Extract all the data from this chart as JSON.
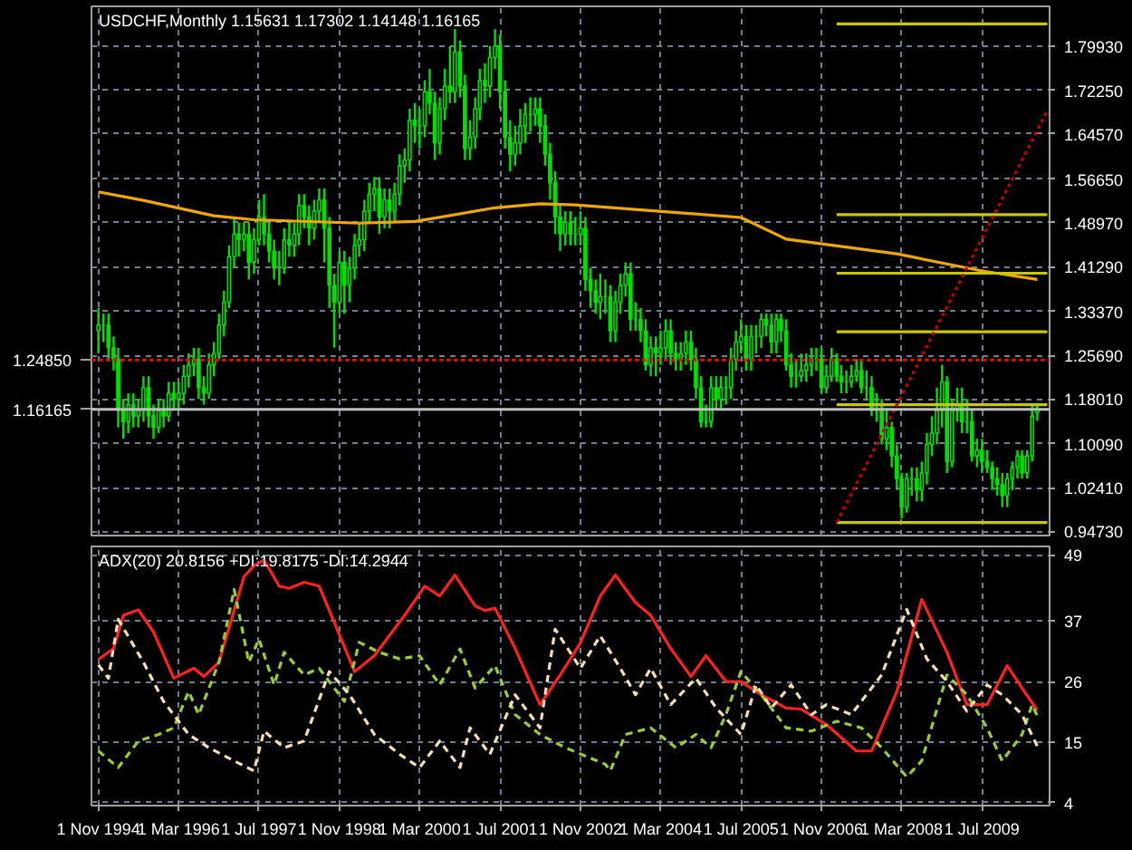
{
  "chart_data": [
    {
      "type": "candlestick",
      "title": "USDCHF,Monthly  1.15631 1.17302 1.14148 1.16165",
      "color": "#00e000",
      "x": [
        "1994-11",
        "1994-12",
        "1995-01",
        "1995-02",
        "1995-03",
        "1995-04",
        "1995-05",
        "1995-06",
        "1995-07",
        "1995-08",
        "1995-09",
        "1995-10",
        "1995-11",
        "1995-12",
        "1996-01",
        "1996-02",
        "1996-03",
        "1996-04",
        "1996-05",
        "1996-06",
        "1996-07",
        "1996-08",
        "1996-09",
        "1996-10",
        "1996-11",
        "1996-12",
        "1997-01",
        "1997-02",
        "1997-03",
        "1997-04",
        "1997-05",
        "1997-06",
        "1997-07",
        "1997-08",
        "1997-09",
        "1997-10",
        "1997-11",
        "1997-12",
        "1998-01",
        "1998-02",
        "1998-03",
        "1998-04",
        "1998-05",
        "1998-06",
        "1998-07",
        "1998-08",
        "1998-09",
        "1998-10",
        "1998-11",
        "1998-12",
        "1999-01",
        "1999-02",
        "1999-03",
        "1999-04",
        "1999-05",
        "1999-06",
        "1999-07",
        "1999-08",
        "1999-09",
        "1999-10",
        "1999-11",
        "1999-12",
        "2000-01",
        "2000-02",
        "2000-03",
        "2000-04",
        "2000-05",
        "2000-06",
        "2000-07",
        "2000-08",
        "2000-09",
        "2000-10",
        "2000-11",
        "2000-12",
        "2001-01",
        "2001-02",
        "2001-03",
        "2001-04",
        "2001-05",
        "2001-06",
        "2001-07",
        "2001-08",
        "2001-09",
        "2001-10",
        "2001-11",
        "2001-12",
        "2002-01",
        "2002-02",
        "2002-03",
        "2002-04",
        "2002-05",
        "2002-06",
        "2002-07",
        "2002-08",
        "2002-09",
        "2002-10",
        "2002-11",
        "2002-12",
        "2003-01",
        "2003-02",
        "2003-03",
        "2003-04",
        "2003-05",
        "2003-06",
        "2003-07",
        "2003-08",
        "2003-09",
        "2003-10",
        "2003-11",
        "2003-12",
        "2004-01",
        "2004-02",
        "2004-03",
        "2004-04",
        "2004-05",
        "2004-06",
        "2004-07",
        "2004-08",
        "2004-09",
        "2004-10",
        "2004-11",
        "2004-12",
        "2005-01",
        "2005-02",
        "2005-03",
        "2005-04",
        "2005-05",
        "2005-06",
        "2005-07",
        "2005-08",
        "2005-09",
        "2005-10",
        "2005-11",
        "2005-12",
        "2006-01",
        "2006-02",
        "2006-03",
        "2006-04",
        "2006-05",
        "2006-06",
        "2006-07",
        "2006-08",
        "2006-09",
        "2006-10",
        "2006-11",
        "2006-12",
        "2007-01",
        "2007-02",
        "2007-03",
        "2007-04",
        "2007-05",
        "2007-06",
        "2007-07",
        "2007-08",
        "2007-09",
        "2007-10",
        "2007-11",
        "2007-12",
        "2008-01",
        "2008-02",
        "2008-03",
        "2008-04",
        "2008-05",
        "2008-06",
        "2008-07",
        "2008-08",
        "2008-09",
        "2008-10",
        "2008-11",
        "2008-12",
        "2009-01",
        "2009-02",
        "2009-03",
        "2009-04",
        "2009-05",
        "2009-06",
        "2009-07",
        "2009-08",
        "2009-09",
        "2009-10",
        "2009-11",
        "2009-12",
        "2010-01",
        "2010-02",
        "2010-03",
        "2010-04",
        "2010-05",
        "2010-06"
      ],
      "ohlc": [
        [
          1.3,
          1.34,
          1.26,
          1.31
        ],
        [
          1.31,
          1.33,
          1.28,
          1.31
        ],
        [
          1.31,
          1.33,
          1.25,
          1.27
        ],
        [
          1.27,
          1.29,
          1.23,
          1.25
        ],
        [
          1.25,
          1.27,
          1.13,
          1.16
        ],
        [
          1.16,
          1.18,
          1.11,
          1.14
        ],
        [
          1.14,
          1.19,
          1.12,
          1.17
        ],
        [
          1.17,
          1.19,
          1.13,
          1.15
        ],
        [
          1.15,
          1.18,
          1.13,
          1.16
        ],
        [
          1.16,
          1.22,
          1.14,
          1.2
        ],
        [
          1.2,
          1.22,
          1.13,
          1.15
        ],
        [
          1.15,
          1.17,
          1.11,
          1.13
        ],
        [
          1.13,
          1.18,
          1.12,
          1.16
        ],
        [
          1.16,
          1.18,
          1.13,
          1.15
        ],
        [
          1.15,
          1.21,
          1.14,
          1.19
        ],
        [
          1.19,
          1.21,
          1.16,
          1.18
        ],
        [
          1.18,
          1.21,
          1.16,
          1.19
        ],
        [
          1.19,
          1.24,
          1.17,
          1.22
        ],
        [
          1.22,
          1.26,
          1.2,
          1.24
        ],
        [
          1.24,
          1.27,
          1.22,
          1.25
        ],
        [
          1.25,
          1.27,
          1.18,
          1.2
        ],
        [
          1.2,
          1.22,
          1.17,
          1.19
        ],
        [
          1.19,
          1.26,
          1.18,
          1.24
        ],
        [
          1.24,
          1.28,
          1.22,
          1.26
        ],
        [
          1.26,
          1.33,
          1.25,
          1.31
        ],
        [
          1.31,
          1.37,
          1.29,
          1.35
        ],
        [
          1.35,
          1.45,
          1.34,
          1.43
        ],
        [
          1.43,
          1.5,
          1.41,
          1.47
        ],
        [
          1.47,
          1.49,
          1.43,
          1.46
        ],
        [
          1.46,
          1.49,
          1.44,
          1.47
        ],
        [
          1.47,
          1.49,
          1.39,
          1.42
        ],
        [
          1.42,
          1.48,
          1.4,
          1.46
        ],
        [
          1.46,
          1.53,
          1.45,
          1.5
        ],
        [
          1.5,
          1.54,
          1.45,
          1.47
        ],
        [
          1.47,
          1.49,
          1.42,
          1.44
        ],
        [
          1.44,
          1.46,
          1.39,
          1.41
        ],
        [
          1.41,
          1.44,
          1.38,
          1.41
        ],
        [
          1.41,
          1.48,
          1.4,
          1.46
        ],
        [
          1.46,
          1.49,
          1.43,
          1.45
        ],
        [
          1.45,
          1.49,
          1.43,
          1.47
        ],
        [
          1.47,
          1.54,
          1.45,
          1.52
        ],
        [
          1.52,
          1.54,
          1.48,
          1.5
        ],
        [
          1.5,
          1.52,
          1.45,
          1.48
        ],
        [
          1.48,
          1.53,
          1.46,
          1.51
        ],
        [
          1.51,
          1.55,
          1.49,
          1.53
        ],
        [
          1.53,
          1.55,
          1.42,
          1.48
        ],
        [
          1.48,
          1.5,
          1.34,
          1.38
        ],
        [
          1.38,
          1.4,
          1.27,
          1.35
        ],
        [
          1.35,
          1.44,
          1.33,
          1.42
        ],
        [
          1.42,
          1.44,
          1.33,
          1.38
        ],
        [
          1.38,
          1.43,
          1.35,
          1.41
        ],
        [
          1.41,
          1.47,
          1.39,
          1.45
        ],
        [
          1.45,
          1.49,
          1.43,
          1.46
        ],
        [
          1.46,
          1.53,
          1.44,
          1.51
        ],
        [
          1.51,
          1.56,
          1.49,
          1.54
        ],
        [
          1.54,
          1.57,
          1.51,
          1.55
        ],
        [
          1.55,
          1.57,
          1.47,
          1.5
        ],
        [
          1.5,
          1.55,
          1.48,
          1.53
        ],
        [
          1.53,
          1.55,
          1.48,
          1.51
        ],
        [
          1.51,
          1.56,
          1.49,
          1.54
        ],
        [
          1.54,
          1.61,
          1.52,
          1.59
        ],
        [
          1.59,
          1.62,
          1.56,
          1.6
        ],
        [
          1.6,
          1.69,
          1.58,
          1.67
        ],
        [
          1.67,
          1.7,
          1.63,
          1.66
        ],
        [
          1.66,
          1.69,
          1.62,
          1.66
        ],
        [
          1.66,
          1.74,
          1.64,
          1.72
        ],
        [
          1.72,
          1.76,
          1.68,
          1.7
        ],
        [
          1.7,
          1.72,
          1.6,
          1.63
        ],
        [
          1.63,
          1.71,
          1.61,
          1.69
        ],
        [
          1.69,
          1.76,
          1.67,
          1.73
        ],
        [
          1.73,
          1.8,
          1.7,
          1.72
        ],
        [
          1.72,
          1.83,
          1.7,
          1.79
        ],
        [
          1.79,
          1.81,
          1.71,
          1.73
        ],
        [
          1.73,
          1.75,
          1.6,
          1.62
        ],
        [
          1.62,
          1.67,
          1.6,
          1.64
        ],
        [
          1.64,
          1.71,
          1.62,
          1.69
        ],
        [
          1.69,
          1.76,
          1.67,
          1.74
        ],
        [
          1.74,
          1.77,
          1.7,
          1.73
        ],
        [
          1.73,
          1.8,
          1.71,
          1.78
        ],
        [
          1.78,
          1.83,
          1.76,
          1.8
        ],
        [
          1.8,
          1.82,
          1.69,
          1.72
        ],
        [
          1.72,
          1.74,
          1.62,
          1.64
        ],
        [
          1.64,
          1.67,
          1.58,
          1.61
        ],
        [
          1.61,
          1.66,
          1.59,
          1.63
        ],
        [
          1.63,
          1.69,
          1.61,
          1.66
        ],
        [
          1.66,
          1.7,
          1.63,
          1.68
        ],
        [
          1.68,
          1.71,
          1.65,
          1.68
        ],
        [
          1.68,
          1.71,
          1.66,
          1.69
        ],
        [
          1.69,
          1.71,
          1.63,
          1.66
        ],
        [
          1.66,
          1.68,
          1.59,
          1.61
        ],
        [
          1.61,
          1.63,
          1.53,
          1.56
        ],
        [
          1.56,
          1.58,
          1.47,
          1.5
        ],
        [
          1.5,
          1.52,
          1.44,
          1.47
        ],
        [
          1.47,
          1.51,
          1.45,
          1.49
        ],
        [
          1.49,
          1.51,
          1.45,
          1.47
        ],
        [
          1.47,
          1.5,
          1.45,
          1.47
        ],
        [
          1.47,
          1.51,
          1.45,
          1.48
        ],
        [
          1.48,
          1.5,
          1.37,
          1.39
        ],
        [
          1.39,
          1.41,
          1.34,
          1.37
        ],
        [
          1.37,
          1.39,
          1.33,
          1.35
        ],
        [
          1.35,
          1.4,
          1.32,
          1.36
        ],
        [
          1.36,
          1.39,
          1.33,
          1.36
        ],
        [
          1.36,
          1.38,
          1.28,
          1.3
        ],
        [
          1.3,
          1.37,
          1.28,
          1.35
        ],
        [
          1.35,
          1.4,
          1.33,
          1.38
        ],
        [
          1.38,
          1.42,
          1.36,
          1.4
        ],
        [
          1.4,
          1.42,
          1.3,
          1.32
        ],
        [
          1.32,
          1.35,
          1.3,
          1.32
        ],
        [
          1.32,
          1.34,
          1.28,
          1.3
        ],
        [
          1.3,
          1.32,
          1.23,
          1.24
        ],
        [
          1.24,
          1.29,
          1.22,
          1.27
        ],
        [
          1.27,
          1.29,
          1.22,
          1.26
        ],
        [
          1.26,
          1.3,
          1.24,
          1.27
        ],
        [
          1.27,
          1.32,
          1.25,
          1.3
        ],
        [
          1.3,
          1.32,
          1.24,
          1.26
        ],
        [
          1.26,
          1.28,
          1.23,
          1.25
        ],
        [
          1.25,
          1.28,
          1.23,
          1.26
        ],
        [
          1.26,
          1.3,
          1.24,
          1.28
        ],
        [
          1.28,
          1.3,
          1.23,
          1.25
        ],
        [
          1.25,
          1.27,
          1.18,
          1.2
        ],
        [
          1.2,
          1.22,
          1.13,
          1.14
        ],
        [
          1.14,
          1.17,
          1.13,
          1.14
        ],
        [
          1.14,
          1.22,
          1.13,
          1.2
        ],
        [
          1.2,
          1.22,
          1.16,
          1.18
        ],
        [
          1.18,
          1.22,
          1.16,
          1.2
        ],
        [
          1.2,
          1.22,
          1.17,
          1.2
        ],
        [
          1.2,
          1.27,
          1.18,
          1.25
        ],
        [
          1.25,
          1.3,
          1.23,
          1.28
        ],
        [
          1.28,
          1.32,
          1.26,
          1.29
        ],
        [
          1.29,
          1.31,
          1.23,
          1.25
        ],
        [
          1.25,
          1.31,
          1.23,
          1.29
        ],
        [
          1.29,
          1.31,
          1.26,
          1.29
        ],
        [
          1.29,
          1.33,
          1.27,
          1.32
        ],
        [
          1.32,
          1.33,
          1.29,
          1.31
        ],
        [
          1.31,
          1.33,
          1.26,
          1.28
        ],
        [
          1.28,
          1.33,
          1.26,
          1.32
        ],
        [
          1.32,
          1.33,
          1.28,
          1.3
        ],
        [
          1.3,
          1.32,
          1.23,
          1.24
        ],
        [
          1.24,
          1.26,
          1.2,
          1.22
        ],
        [
          1.22,
          1.25,
          1.2,
          1.22
        ],
        [
          1.22,
          1.26,
          1.21,
          1.23
        ],
        [
          1.23,
          1.26,
          1.21,
          1.24
        ],
        [
          1.24,
          1.27,
          1.22,
          1.25
        ],
        [
          1.25,
          1.27,
          1.23,
          1.25
        ],
        [
          1.25,
          1.27,
          1.19,
          1.2
        ],
        [
          1.2,
          1.24,
          1.19,
          1.22
        ],
        [
          1.22,
          1.27,
          1.21,
          1.25
        ],
        [
          1.25,
          1.26,
          1.21,
          1.22
        ],
        [
          1.22,
          1.24,
          1.19,
          1.21
        ],
        [
          1.21,
          1.23,
          1.19,
          1.21
        ],
        [
          1.21,
          1.24,
          1.2,
          1.22
        ],
        [
          1.22,
          1.25,
          1.21,
          1.23
        ],
        [
          1.23,
          1.25,
          1.19,
          1.2
        ],
        [
          1.2,
          1.23,
          1.18,
          1.2
        ],
        [
          1.2,
          1.22,
          1.15,
          1.16
        ],
        [
          1.16,
          1.19,
          1.14,
          1.16
        ],
        [
          1.16,
          1.18,
          1.1,
          1.11
        ],
        [
          1.11,
          1.16,
          1.09,
          1.13
        ],
        [
          1.13,
          1.14,
          1.06,
          1.08
        ],
        [
          1.08,
          1.1,
          1.02,
          1.04
        ],
        [
          1.04,
          1.05,
          0.97,
          0.99
        ],
        [
          0.99,
          1.05,
          0.98,
          1.04
        ],
        [
          1.04,
          1.06,
          1.01,
          1.04
        ],
        [
          1.04,
          1.06,
          1.0,
          1.02
        ],
        [
          1.02,
          1.07,
          1.0,
          1.05
        ],
        [
          1.05,
          1.12,
          1.03,
          1.1
        ],
        [
          1.1,
          1.15,
          1.08,
          1.12
        ],
        [
          1.12,
          1.2,
          1.1,
          1.16
        ],
        [
          1.16,
          1.24,
          1.13,
          1.21
        ],
        [
          1.21,
          1.22,
          1.05,
          1.07
        ],
        [
          1.07,
          1.18,
          1.06,
          1.16
        ],
        [
          1.16,
          1.2,
          1.14,
          1.17
        ],
        [
          1.17,
          1.2,
          1.12,
          1.14
        ],
        [
          1.14,
          1.18,
          1.12,
          1.14
        ],
        [
          1.14,
          1.16,
          1.07,
          1.08
        ],
        [
          1.08,
          1.11,
          1.06,
          1.09
        ],
        [
          1.09,
          1.11,
          1.05,
          1.07
        ],
        [
          1.07,
          1.09,
          1.05,
          1.06
        ],
        [
          1.06,
          1.07,
          1.02,
          1.04
        ],
        [
          1.04,
          1.06,
          1.01,
          1.03
        ],
        [
          1.03,
          1.05,
          0.99,
          1.01
        ],
        [
          1.01,
          1.05,
          0.99,
          1.04
        ],
        [
          1.04,
          1.07,
          1.02,
          1.06
        ],
        [
          1.06,
          1.09,
          1.04,
          1.08
        ],
        [
          1.08,
          1.09,
          1.04,
          1.05
        ],
        [
          1.05,
          1.09,
          1.04,
          1.08
        ],
        [
          1.08,
          1.17,
          1.07,
          1.15
        ],
        [
          1.15631,
          1.17302,
          1.14148,
          1.16165
        ]
      ],
      "series": [
        {
          "type": "line",
          "color": "#f0a800",
          "x": [
            "1994-11",
            "1995-08",
            "1996-10",
            "1997-06",
            "1999-03",
            "2000-02",
            "2001-06",
            "2002-03",
            "2002-10",
            "2005-07",
            "2006-04",
            "2008-02",
            "2009-07",
            "2010-06"
          ],
          "values": [
            1.544,
            1.529,
            1.502,
            1.495,
            1.489,
            1.492,
            1.516,
            1.523,
            1.521,
            1.499,
            1.461,
            1.435,
            1.405,
            1.39
          ]
        },
        {
          "type": "line",
          "color": "#c8c800",
          "x": [
            "2007-02",
            "2010-08"
          ],
          "values": [
            0.963,
            0.963
          ]
        },
        {
          "type": "line",
          "color": "#c8c800",
          "x": [
            "2007-02",
            "2010-08"
          ],
          "values": [
            1.17,
            1.17
          ]
        },
        {
          "type": "line",
          "color": "#c8c800",
          "x": [
            "2007-02",
            "2010-08"
          ],
          "values": [
            1.298,
            1.298
          ]
        },
        {
          "type": "line",
          "color": "#c8c800",
          "x": [
            "2007-02",
            "2010-08"
          ],
          "values": [
            1.401,
            1.401
          ]
        },
        {
          "type": "line",
          "color": "#c8c800",
          "x": [
            "2007-02",
            "2010-08"
          ],
          "values": [
            1.504,
            1.504
          ]
        },
        {
          "type": "line",
          "color": "#c8c800",
          "x": [
            "2007-02",
            "2010-08"
          ],
          "values": [
            1.839,
            1.839
          ]
        },
        {
          "type": "line",
          "color": "#c00000",
          "line_style": "dotted",
          "x": [
            "2007-02",
            "2010-08"
          ],
          "values": [
            0.963,
            1.687
          ]
        }
      ],
      "ref_lines": [
        {
          "axis": "y",
          "value": 1.2485,
          "label": "1.24850",
          "color": "#ff0000",
          "line_style": "dotted"
        },
        {
          "axis": "y",
          "value": 1.16165,
          "label": "1.16165",
          "color": "#c0c0c0"
        }
      ],
      "xlim": [
        "1994-09-20",
        "2010-08-15"
      ],
      "xticks": [
        {
          "value": "1994-11-01",
          "label": null
        },
        {
          "value": "1996-03-01",
          "label": null
        },
        {
          "value": "1997-07-01",
          "label": null
        },
        {
          "value": "1998-11-01",
          "label": null
        },
        {
          "value": "2000-03-01",
          "label": null
        },
        {
          "value": "2001-07-01",
          "label": null
        },
        {
          "value": "2002-11-01",
          "label": null
        },
        {
          "value": "2004-03-01",
          "label": null
        },
        {
          "value": "2005-07-01",
          "label": null
        },
        {
          "value": "2006-11-01",
          "label": null
        },
        {
          "value": "2008-03-01",
          "label": null
        },
        {
          "value": "2009-07-01",
          "label": null
        }
      ],
      "ylim": [
        0.94,
        1.87
      ],
      "yticks": [
        {
          "value": 0.9473,
          "label": "0.94730"
        },
        {
          "value": 1.0241,
          "label": "1.02410"
        },
        {
          "value": 1.1009,
          "label": "1.10090"
        },
        {
          "value": 1.1801,
          "label": "1.18010"
        },
        {
          "value": 1.2569,
          "label": "1.25690"
        },
        {
          "value": 1.3337,
          "label": "1.33370"
        },
        {
          "value": 1.4129,
          "label": "1.41290"
        },
        {
          "value": 1.4897,
          "label": "1.48970"
        },
        {
          "value": 1.5665,
          "label": "1.56650"
        },
        {
          "value": 1.6457,
          "label": "1.64570"
        },
        {
          "value": 1.7225,
          "label": "1.72250"
        },
        {
          "value": 1.7993,
          "label": "1.79930"
        }
      ],
      "grid": true,
      "tick_labels": "y"
    },
    {
      "type": "line",
      "title": "ADX(20) 20.8156 +DI:19.8175 -DI:14.2944",
      "series": [
        {
          "color": "#ff2020",
          "x": [
            "1994-11",
            "1995-02",
            "1995-04",
            "1995-07",
            "1995-10",
            "1996-02",
            "1996-06",
            "1996-08",
            "1996-11",
            "1997-04",
            "1997-06",
            "1997-08",
            "1997-11",
            "1998-01",
            "1998-04",
            "1998-07",
            "1998-10",
            "1999-02",
            "1999-06",
            "1999-12",
            "2000-04",
            "2000-07",
            "2000-10",
            "2001-02",
            "2001-04",
            "2001-06",
            "2001-10",
            "2002-03",
            "2002-07",
            "2002-11",
            "2003-03",
            "2003-06",
            "2003-10",
            "2004-01",
            "2004-05",
            "2004-09",
            "2004-12",
            "2005-04",
            "2005-07",
            "2005-11",
            "2006-04",
            "2006-07",
            "2006-12",
            "2007-06",
            "2007-09",
            "2008-02",
            "2008-07",
            "2008-12",
            "2009-04",
            "2009-08",
            "2009-12",
            "2010-03",
            "2010-06"
          ],
          "values": [
            30,
            32,
            38,
            39,
            35,
            26.6,
            28.4,
            26.9,
            29.5,
            45,
            47,
            48,
            43.3,
            42.9,
            44,
            43.3,
            36.7,
            27.8,
            30.7,
            38,
            43.3,
            41.5,
            45.3,
            39.7,
            38.9,
            39.3,
            32,
            21.8,
            27.2,
            33,
            41.5,
            45.3,
            40.3,
            38,
            32,
            26.9,
            30.7,
            26,
            26,
            23.6,
            21.2,
            21,
            18.2,
            13.4,
            13.4,
            24.2,
            40.9,
            31.3,
            21.8,
            21.8,
            28.9,
            24.8,
            20.8
          ]
        },
        {
          "color": "#9acd32",
          "line_style": "dashed",
          "x": [
            "1994-11",
            "1995-03",
            "1995-07",
            "1995-11",
            "1996-02",
            "1996-05",
            "1996-07",
            "1996-11",
            "1997-02",
            "1997-05",
            "1997-07",
            "1997-10",
            "1997-12",
            "1998-04",
            "1998-07",
            "1998-12",
            "1999-03",
            "1999-07",
            "1999-11",
            "2000-03",
            "2000-07",
            "2000-11",
            "2001-02",
            "2001-06",
            "2001-10",
            "2002-03",
            "2002-08",
            "2003-04",
            "2003-05",
            "2003-08",
            "2004-01",
            "2004-06",
            "2004-10",
            "2005-01",
            "2005-04",
            "2005-07",
            "2005-11",
            "2006-04",
            "2006-09",
            "2007-02",
            "2007-07",
            "2007-11",
            "2008-04",
            "2008-07",
            "2008-12",
            "2009-04",
            "2009-08",
            "2009-11",
            "2010-03",
            "2010-05",
            "2010-06"
          ],
          "values": [
            13.4,
            10.4,
            15.2,
            16.4,
            17.6,
            24.2,
            20,
            29.5,
            42.7,
            29.5,
            33.7,
            25.4,
            31.3,
            27.2,
            28.4,
            22.4,
            33.1,
            31.3,
            30.1,
            30.7,
            25.4,
            31.9,
            24.8,
            28.9,
            20,
            16.4,
            14,
            11,
            9.8,
            16.4,
            17.6,
            14,
            16.4,
            14,
            20,
            27.8,
            23.6,
            17.6,
            17,
            18.8,
            17.6,
            14,
            8.7,
            11.6,
            27.2,
            23.6,
            17.6,
            11.6,
            16.4,
            21.8,
            19.8
          ]
        },
        {
          "color": "#f5deb3",
          "line_style": "dashed",
          "x": [
            "1994-11",
            "1995-01",
            "1995-03",
            "1995-08",
            "1995-12",
            "1996-05",
            "1996-09",
            "1997-02",
            "1997-06",
            "1997-08",
            "1997-12",
            "1998-04",
            "1998-09",
            "1999-01",
            "1999-06",
            "1999-11",
            "2000-03",
            "2000-07",
            "2000-11",
            "2001-01",
            "2001-05",
            "2001-10",
            "2002-03",
            "2002-06",
            "2002-11",
            "2003-03",
            "2003-07",
            "2003-10",
            "2004-01",
            "2004-05",
            "2004-10",
            "2005-02",
            "2005-07",
            "2005-10",
            "2006-01",
            "2006-05",
            "2006-09",
            "2006-12",
            "2007-05",
            "2007-07",
            "2007-11",
            "2008-04",
            "2008-08",
            "2008-12",
            "2009-04",
            "2009-08",
            "2009-11",
            "2010-03",
            "2010-06"
          ],
          "values": [
            29,
            26.6,
            37.3,
            29.5,
            22.4,
            16.4,
            14,
            11.6,
            9.8,
            17,
            14,
            15.2,
            27.8,
            23.6,
            16.4,
            12.8,
            10.4,
            15.2,
            10.4,
            17.6,
            12.8,
            23.6,
            17.6,
            35.5,
            28.4,
            34.3,
            28.4,
            23.6,
            28.4,
            21.8,
            26.6,
            21.2,
            16.4,
            25.4,
            21.2,
            25.4,
            20,
            21.8,
            20,
            22.4,
            27.2,
            39.1,
            30.1,
            26,
            20.6,
            25.4,
            23.6,
            20,
            14.3
          ]
        }
      ],
      "xlim": [
        "1994-09-20",
        "2010-08-15"
      ],
      "xticks": [
        {
          "value": "1994-11-01",
          "label": "1 Nov 1994"
        },
        {
          "value": "1996-03-01",
          "label": "1 Mar 1996"
        },
        {
          "value": "1997-07-01",
          "label": "1 Jul 1997"
        },
        {
          "value": "1998-11-01",
          "label": "1 Nov 1998"
        },
        {
          "value": "2000-03-01",
          "label": "1 Mar 2000"
        },
        {
          "value": "2001-07-01",
          "label": "1 Jul 2001"
        },
        {
          "value": "2002-11-01",
          "label": "1 Nov 2002"
        },
        {
          "value": "2004-03-01",
          "label": "1 Mar 2004"
        },
        {
          "value": "2005-07-01",
          "label": "1 Jul 2005"
        },
        {
          "value": "2006-11-01",
          "label": "1 Nov 2006"
        },
        {
          "value": "2008-03-01",
          "label": "1 Mar 2008"
        },
        {
          "value": "2009-07-01",
          "label": "1 Jul 2009"
        }
      ],
      "ylim": [
        3.5,
        50.5
      ],
      "yticks": [
        4,
        15,
        26,
        37,
        49
      ],
      "grid": true
    }
  ]
}
